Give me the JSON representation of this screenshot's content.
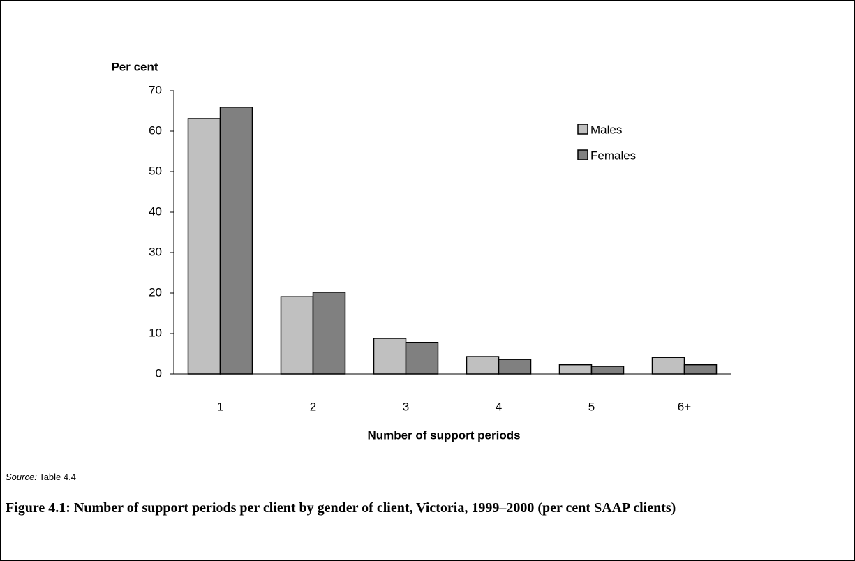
{
  "chart_data": {
    "type": "bar",
    "y_label": "Per cent",
    "x_label": "Number of support periods",
    "categories": [
      "1",
      "2",
      "3",
      "4",
      "5",
      "6+"
    ],
    "series": [
      {
        "name": "Males",
        "color": "#c0c0c0",
        "values": [
          63.1,
          19.1,
          8.8,
          4.3,
          2.3,
          4.1
        ]
      },
      {
        "name": "Females",
        "color": "#808080",
        "values": [
          65.9,
          20.2,
          7.8,
          3.6,
          1.9,
          2.3
        ]
      }
    ],
    "ylim": [
      0,
      70
    ],
    "yticks": [
      0,
      10,
      20,
      30,
      40,
      50,
      60,
      70
    ],
    "grid": false,
    "legend": "upper right"
  },
  "source": {
    "label": "Source:",
    "text": "Table 4.4"
  },
  "caption": "Figure 4.1: Number of support periods per client by gender of client, Victoria, 1999–2000 (per cent SAAP clients)"
}
